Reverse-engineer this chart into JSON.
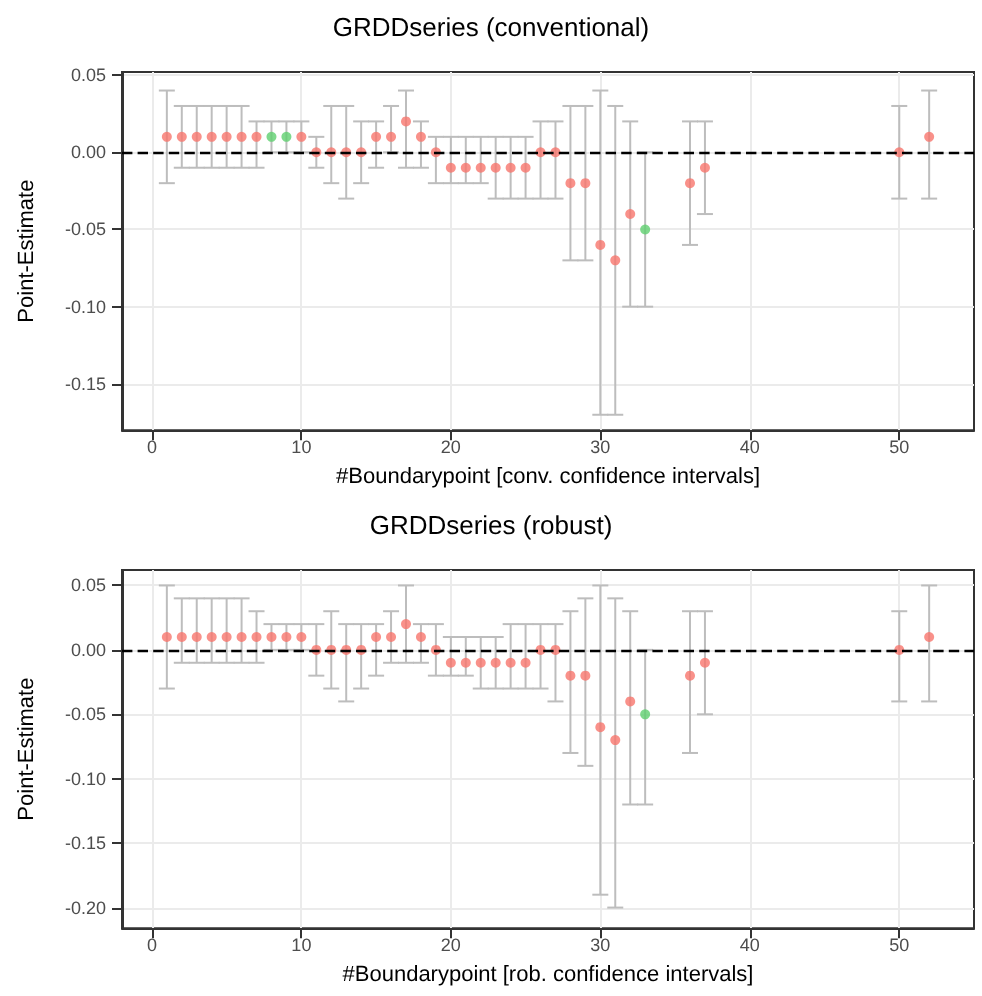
{
  "chart_data": [
    {
      "type": "scatter",
      "title": "GRDDseries (conventional)",
      "xlabel": "#Boundarypoint [conv. confidence intervals]",
      "ylabel": "Point-Estimate",
      "series": [
        {
          "color": "#f8766d",
          "x": [
            1,
            2,
            3,
            4,
            5,
            6,
            7,
            10,
            11,
            12,
            13,
            14,
            15,
            16,
            17,
            18,
            19,
            20,
            21,
            22,
            23,
            24,
            25,
            26,
            27,
            28,
            29,
            30,
            31,
            32,
            36,
            37,
            50,
            52
          ],
          "values": [
            0.01,
            0.01,
            0.01,
            0.01,
            0.01,
            0.01,
            0.01,
            0.01,
            0,
            0,
            0,
            0,
            0.01,
            0.01,
            0.02,
            0.01,
            0,
            -0.01,
            -0.01,
            -0.01,
            -0.01,
            -0.01,
            -0.01,
            0,
            0,
            -0.02,
            -0.02,
            -0.06,
            -0.07,
            -0.04,
            -0.02,
            -0.01,
            0,
            0.01
          ],
          "errors": [
            [
              -0.02,
              0.04
            ],
            [
              -0.01,
              0.03
            ],
            [
              -0.01,
              0.03
            ],
            [
              -0.01,
              0.03
            ],
            [
              -0.01,
              0.03
            ],
            [
              -0.01,
              0.03
            ],
            [
              -0.01,
              0.02
            ],
            [
              0,
              0.02
            ],
            [
              -0.01,
              0.01
            ],
            [
              -0.02,
              0.03
            ],
            [
              -0.03,
              0.03
            ],
            [
              -0.02,
              0.02
            ],
            [
              -0.01,
              0.02
            ],
            [
              0,
              0.03
            ],
            [
              -0.01,
              0.04
            ],
            [
              -0.01,
              0.02
            ],
            [
              -0.02,
              0.01
            ],
            [
              -0.02,
              0.01
            ],
            [
              -0.02,
              0.01
            ],
            [
              -0.02,
              0.01
            ],
            [
              -0.03,
              0.01
            ],
            [
              -0.03,
              0.01
            ],
            [
              -0.03,
              0.01
            ],
            [
              -0.03,
              0.02
            ],
            [
              -0.03,
              0.02
            ],
            [
              -0.07,
              0.03
            ],
            [
              -0.07,
              0.03
            ],
            [
              -0.17,
              0.04
            ],
            [
              -0.17,
              0.03
            ],
            [
              -0.1,
              0.02
            ],
            [
              -0.06,
              0.02
            ],
            [
              -0.04,
              0.02
            ],
            [
              -0.03,
              0.03
            ],
            [
              -0.03,
              0.04
            ]
          ]
        },
        {
          "color": "#5fcf6f",
          "x": [
            8,
            9,
            33
          ],
          "values": [
            0.01,
            0.01,
            -0.05
          ],
          "errors": [
            [
              0,
              0.02
            ],
            [
              0,
              0.02
            ],
            [
              -0.1,
              0
            ]
          ]
        }
      ],
      "xlim": [
        -2,
        55
      ],
      "ylim": [
        -0.18,
        0.052
      ],
      "xticks": [
        0,
        10,
        20,
        30,
        40,
        50
      ],
      "yticks": [
        {
          "value": 0.05,
          "label": "0.05"
        },
        {
          "value": 0,
          "label": "0.00"
        },
        {
          "value": -0.05,
          "label": "-0.05"
        },
        {
          "value": -0.1,
          "label": "-0.10"
        },
        {
          "value": -0.15,
          "label": "-0.15"
        }
      ],
      "ref_lines": [
        {
          "axis": "y",
          "value": 0,
          "color": "#000000",
          "line_style": "dashed"
        }
      ],
      "grid": true,
      "marker": "circle"
    },
    {
      "type": "scatter",
      "title": "GRDDseries (robust)",
      "xlabel": "#Boundarypoint [rob. confidence intervals]",
      "ylabel": "Point-Estimate",
      "series": [
        {
          "color": "#f8766d",
          "x": [
            1,
            2,
            3,
            4,
            5,
            6,
            7,
            8,
            9,
            10,
            11,
            12,
            13,
            14,
            15,
            16,
            17,
            18,
            19,
            20,
            21,
            22,
            23,
            24,
            25,
            26,
            27,
            28,
            29,
            30,
            31,
            32,
            36,
            37,
            50,
            52
          ],
          "values": [
            0.01,
            0.01,
            0.01,
            0.01,
            0.01,
            0.01,
            0.01,
            0.01,
            0.01,
            0.01,
            0,
            0,
            0,
            0,
            0.01,
            0.01,
            0.02,
            0.01,
            0,
            -0.01,
            -0.01,
            -0.01,
            -0.01,
            -0.01,
            -0.01,
            0,
            0,
            -0.02,
            -0.02,
            -0.06,
            -0.07,
            -0.04,
            -0.02,
            -0.01,
            0,
            0.01
          ],
          "errors": [
            [
              -0.03,
              0.05
            ],
            [
              -0.01,
              0.04
            ],
            [
              -0.01,
              0.04
            ],
            [
              -0.01,
              0.04
            ],
            [
              -0.01,
              0.04
            ],
            [
              -0.01,
              0.04
            ],
            [
              -0.01,
              0.03
            ],
            [
              0,
              0.02
            ],
            [
              0,
              0.02
            ],
            [
              0,
              0.02
            ],
            [
              -0.02,
              0.02
            ],
            [
              -0.03,
              0.03
            ],
            [
              -0.04,
              0.02
            ],
            [
              -0.03,
              0.02
            ],
            [
              -0.02,
              0.02
            ],
            [
              -0.01,
              0.03
            ],
            [
              -0.01,
              0.05
            ],
            [
              -0.01,
              0.02
            ],
            [
              -0.02,
              0.02
            ],
            [
              -0.02,
              0.01
            ],
            [
              -0.02,
              0.01
            ],
            [
              -0.03,
              0.01
            ],
            [
              -0.03,
              0.01
            ],
            [
              -0.03,
              0.02
            ],
            [
              -0.03,
              0.02
            ],
            [
              -0.03,
              0.02
            ],
            [
              -0.04,
              0.02
            ],
            [
              -0.08,
              0.03
            ],
            [
              -0.09,
              0.04
            ],
            [
              -0.19,
              0.05
            ],
            [
              -0.2,
              0.04
            ],
            [
              -0.12,
              0.03
            ],
            [
              -0.08,
              0.03
            ],
            [
              -0.05,
              0.03
            ],
            [
              -0.04,
              0.03
            ],
            [
              -0.04,
              0.05
            ]
          ]
        },
        {
          "color": "#5fcf6f",
          "x": [
            33
          ],
          "values": [
            -0.05
          ],
          "errors": [
            [
              -0.12,
              0
            ]
          ]
        }
      ],
      "xlim": [
        -2,
        55
      ],
      "ylim": [
        -0.216,
        0.062
      ],
      "xticks": [
        0,
        10,
        20,
        30,
        40,
        50
      ],
      "yticks": [
        {
          "value": 0.05,
          "label": "0.05"
        },
        {
          "value": 0,
          "label": "0.00"
        },
        {
          "value": -0.05,
          "label": "-0.05"
        },
        {
          "value": -0.1,
          "label": "-0.10"
        },
        {
          "value": -0.15,
          "label": "-0.15"
        },
        {
          "value": -0.2,
          "label": "-0.20"
        }
      ],
      "ref_lines": [
        {
          "axis": "y",
          "value": 0,
          "color": "#000000",
          "line_style": "dashed"
        }
      ],
      "grid": true,
      "marker": "circle"
    }
  ]
}
